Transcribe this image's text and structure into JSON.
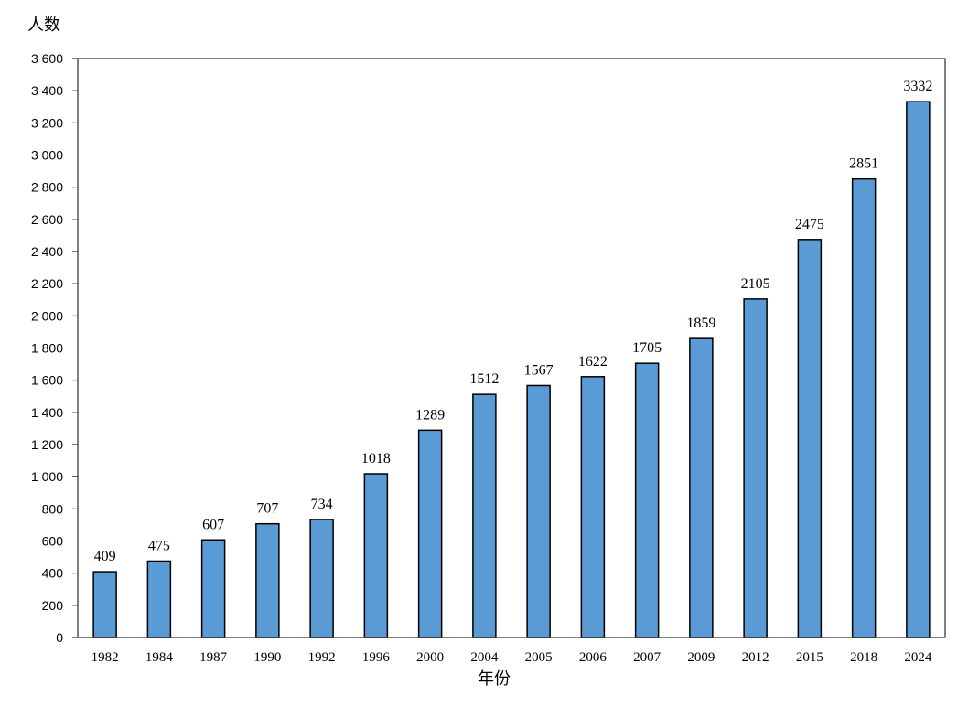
{
  "chart_data": {
    "type": "bar",
    "title": "",
    "xlabel": "年份",
    "ylabel": "人数",
    "ylim": [
      0,
      3600
    ],
    "yticks": [
      0,
      200,
      400,
      600,
      800,
      1000,
      1200,
      1400,
      1600,
      1800,
      2000,
      2200,
      2400,
      2600,
      2800,
      3000,
      3200,
      3400,
      3600
    ],
    "ytick_labels": [
      "0",
      "200",
      "400",
      "600",
      "800",
      "1 000",
      "1 200",
      "1 400",
      "1 600",
      "1 800",
      "2 000",
      "2 200",
      "2 400",
      "2 600",
      "2 800",
      "3 000",
      "3 200",
      "3 400",
      "3 600"
    ],
    "categories": [
      "1982",
      "1984",
      "1987",
      "1990",
      "1992",
      "1996",
      "2000",
      "2004",
      "2005",
      "2006",
      "2007",
      "2009",
      "2012",
      "2015",
      "2018",
      "2024"
    ],
    "values": [
      409,
      475,
      607,
      707,
      734,
      1018,
      1289,
      1512,
      1567,
      1622,
      1705,
      1859,
      2105,
      2475,
      2851,
      3332
    ],
    "grid": false,
    "legend": "none",
    "bar_color": "#5b9bd5",
    "bar_edge_color": "#000000"
  }
}
